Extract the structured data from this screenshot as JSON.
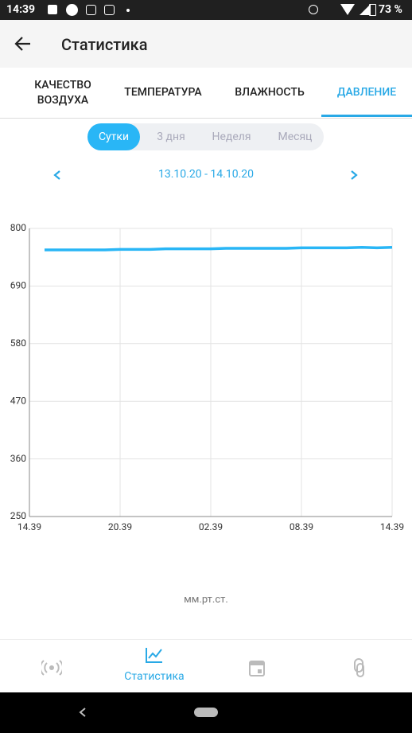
{
  "status_bar": {
    "time": "14:39",
    "battery": "73 %"
  },
  "app_bar": {
    "title": "Статистика"
  },
  "tabs": [
    "КАЧЕСТВО ВОЗДУХА",
    "ТЕМПЕРАТУРА",
    "ВЛАЖНОСТЬ",
    "ДАВЛЕНИЕ"
  ],
  "periods": [
    "Сутки",
    "3 дня",
    "Неделя",
    "Месяц"
  ],
  "date_range": "13.10.20 - 14.10.20",
  "chart_data": {
    "type": "line",
    "x": [
      1,
      2,
      3,
      4,
      5,
      6,
      7,
      8,
      9,
      10,
      11,
      12,
      13,
      14,
      15,
      16,
      17,
      18,
      19,
      20,
      21,
      22,
      23,
      24
    ],
    "series": [
      {
        "color": "#29b6f6",
        "values": [
          759,
          759,
          759,
          759,
          759,
          760,
          760,
          760,
          761,
          761,
          761,
          761,
          762,
          762,
          762,
          762,
          762,
          763,
          763,
          763,
          763,
          764,
          763,
          764
        ]
      }
    ],
    "xlim": [
      0,
      24
    ],
    "xticks": [
      {
        "value": 0,
        "label": "14.39"
      },
      {
        "value": 6,
        "label": "20.39"
      },
      {
        "value": 12,
        "label": "02.39"
      },
      {
        "value": 18,
        "label": "08.39"
      },
      {
        "value": 24,
        "label": "14.39"
      }
    ],
    "ylim": [
      250,
      800
    ],
    "yticks": [
      250,
      360,
      470,
      580,
      690,
      800
    ],
    "grid": true,
    "y_unit": "мм.рт.ст."
  },
  "bottom_nav": {
    "label": "Статистика"
  }
}
